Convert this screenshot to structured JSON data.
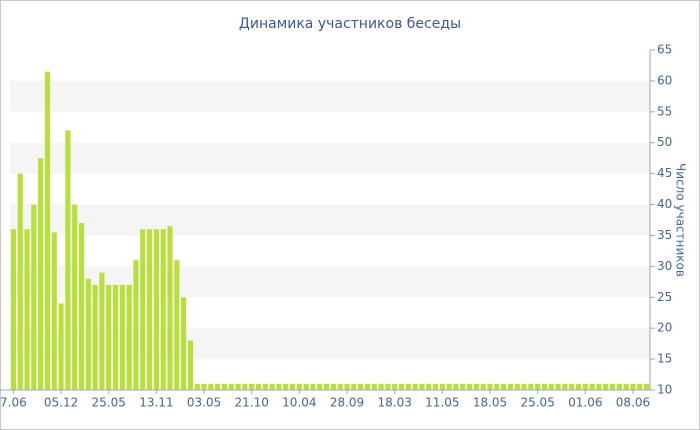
{
  "chart_data": {
    "type": "bar",
    "title": "Динамика участников беседы",
    "y_label": "Число участников",
    "categories": [
      "7.06",
      null,
      null,
      null,
      null,
      null,
      null,
      "05.12",
      null,
      null,
      null,
      null,
      null,
      null,
      "25.05",
      null,
      null,
      null,
      null,
      null,
      null,
      "13.11",
      null,
      null,
      null,
      null,
      null,
      null,
      "03.05",
      null,
      null,
      null,
      null,
      null,
      null,
      "21.10",
      null,
      null,
      null,
      null,
      null,
      null,
      "10.04",
      null,
      null,
      null,
      null,
      null,
      null,
      "28.09",
      null,
      null,
      null,
      null,
      null,
      null,
      "18.03",
      null,
      null,
      null,
      null,
      null,
      null,
      "11.05",
      null,
      null,
      null,
      null,
      null,
      null,
      "18.05",
      null,
      null,
      null,
      null,
      null,
      null,
      "25.05",
      null,
      null,
      null,
      null,
      null,
      null,
      "01.06",
      null,
      null,
      null,
      null,
      null,
      null,
      "08.06",
      null,
      null
    ],
    "values": [
      36,
      45,
      36,
      40,
      47.5,
      61.5,
      35.5,
      24,
      52,
      40,
      37,
      28,
      27,
      29,
      27,
      27,
      27,
      27,
      31,
      36,
      36,
      36,
      36,
      36.5,
      31,
      25,
      18,
      11,
      11,
      11,
      11,
      11,
      11,
      11,
      11,
      11,
      11,
      11,
      11,
      11,
      11,
      11,
      11,
      11,
      11,
      11,
      11,
      11,
      11,
      11,
      11,
      11,
      11,
      11,
      11,
      11,
      11,
      11,
      11,
      11,
      11,
      11,
      11,
      11,
      11,
      11,
      11,
      11,
      11,
      11,
      11,
      11,
      11,
      11,
      11,
      11,
      11,
      11,
      11,
      11,
      11,
      11,
      11,
      11,
      11,
      11,
      11,
      11,
      11,
      11,
      11,
      11,
      11,
      11
    ],
    "color": "#b8e03c",
    "ylim": [
      10,
      65
    ],
    "yticks": [
      10,
      15,
      20,
      25,
      30,
      35,
      40,
      45,
      50,
      55,
      60,
      65
    ],
    "grid": true,
    "y_axis_side": "right"
  }
}
